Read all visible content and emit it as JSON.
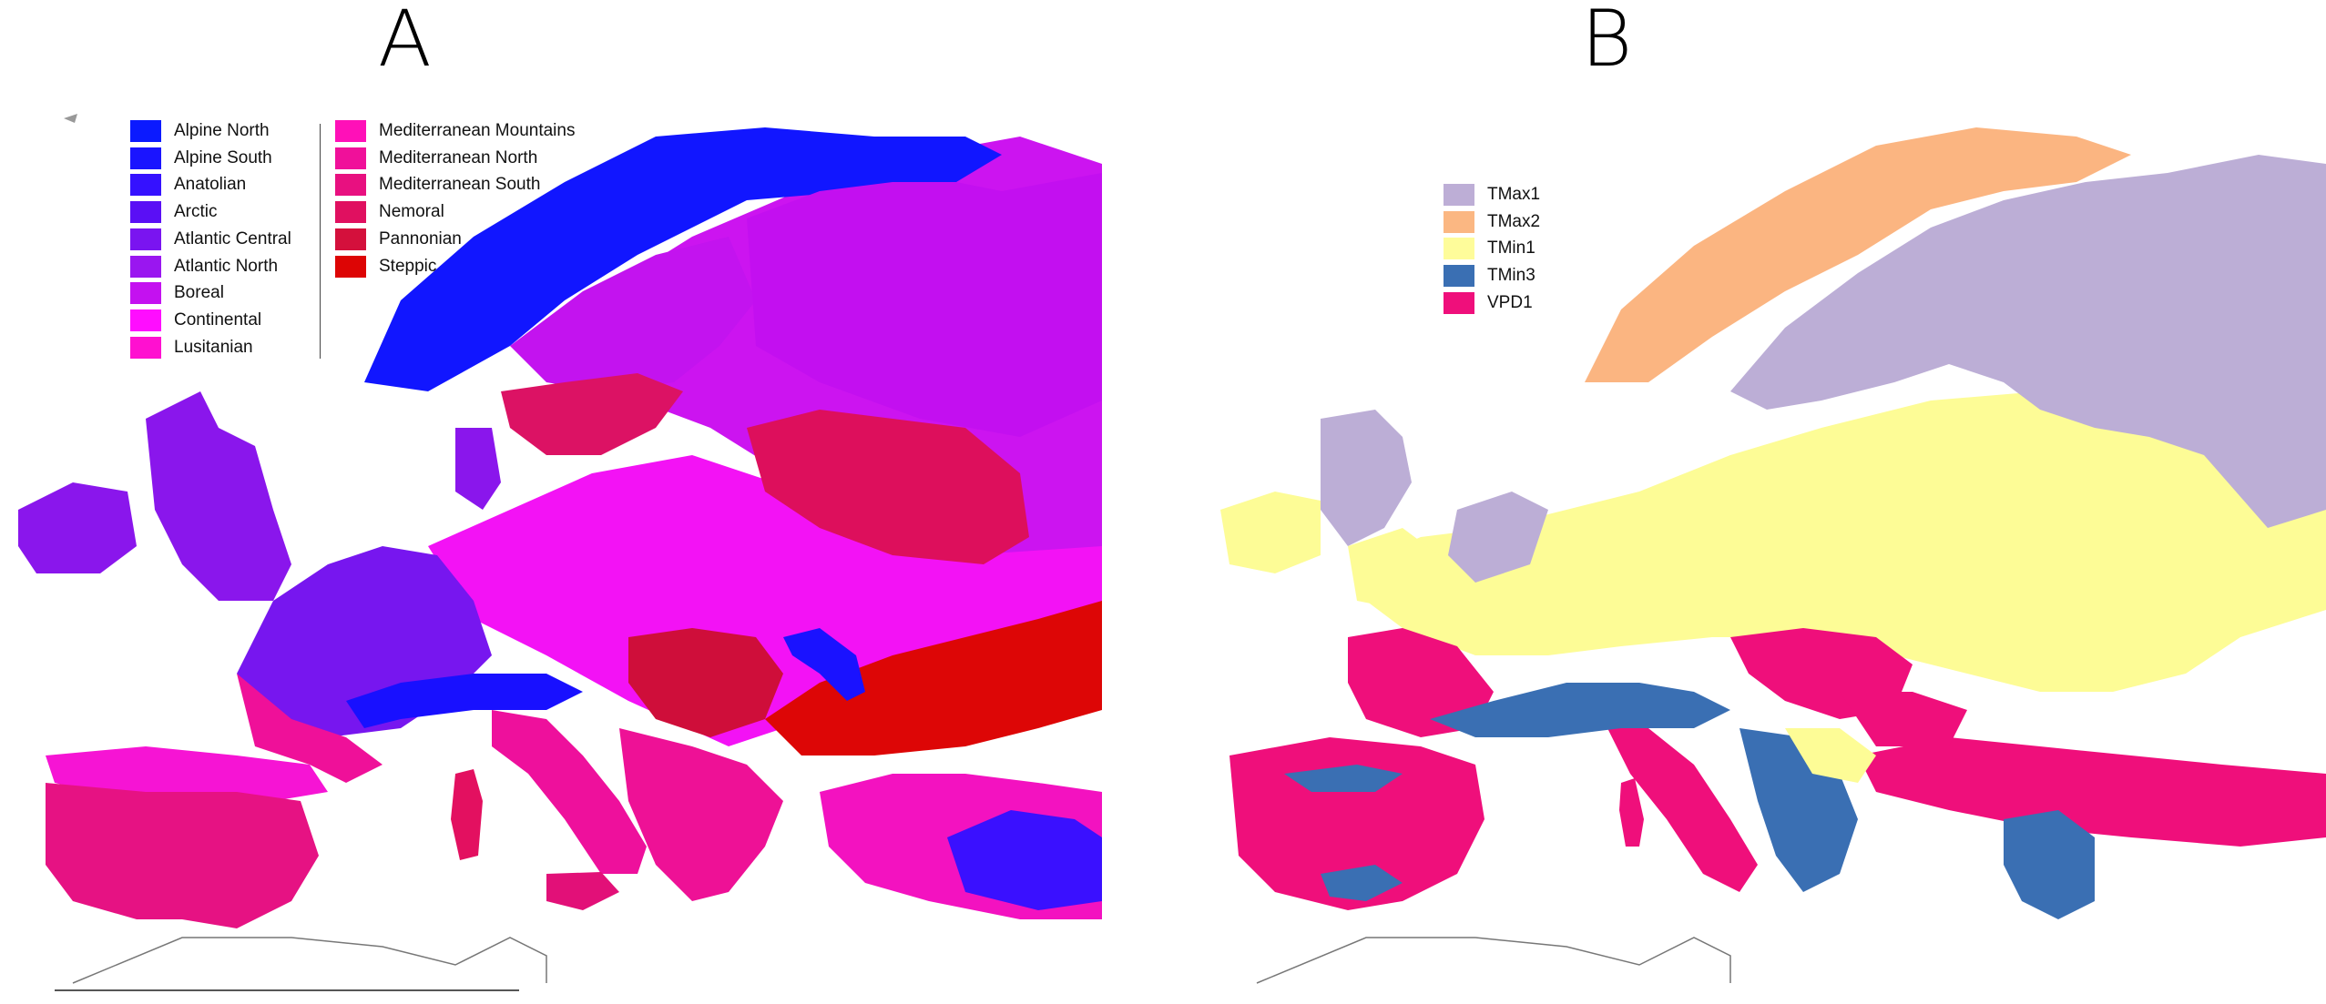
{
  "panel_a": {
    "letter": "A",
    "legend": [
      {
        "label": "Alpine North",
        "color": "#0b1aff"
      },
      {
        "label": "Alpine South",
        "color": "#1a14ff"
      },
      {
        "label": "Anatolian",
        "color": "#3511ff"
      },
      {
        "label": "Arctic",
        "color": "#5a0ff5"
      },
      {
        "label": "Atlantic Central",
        "color": "#7a14f0"
      },
      {
        "label": "Atlantic North",
        "color": "#9a16f0"
      },
      {
        "label": "Boreal",
        "color": "#c411f0"
      },
      {
        "label": "Continental",
        "color": "#ff0dff"
      },
      {
        "label": "Lusitanian",
        "color": "#ff10d0"
      },
      {
        "label": "Mediterranean Mountains",
        "color": "#ff10b8"
      },
      {
        "label": "Mediterranean North",
        "color": "#f0109a"
      },
      {
        "label": "Mediterranean South",
        "color": "#e81080"
      },
      {
        "label": "Nemoral",
        "color": "#e01060"
      },
      {
        "label": "Pannonian",
        "color": "#d4103c"
      },
      {
        "label": "Steppic",
        "color": "#dd0505"
      }
    ]
  },
  "panel_b": {
    "letter": "B",
    "legend": [
      {
        "label": "TMax1",
        "color": "#bdaed6"
      },
      {
        "label": "TMax2",
        "color": "#fbb782"
      },
      {
        "label": "TMin1",
        "color": "#fefc9a"
      },
      {
        "label": "TMin3",
        "color": "#3a6fb3"
      },
      {
        "label": "VPD1",
        "color": "#ef0f7b"
      }
    ]
  }
}
